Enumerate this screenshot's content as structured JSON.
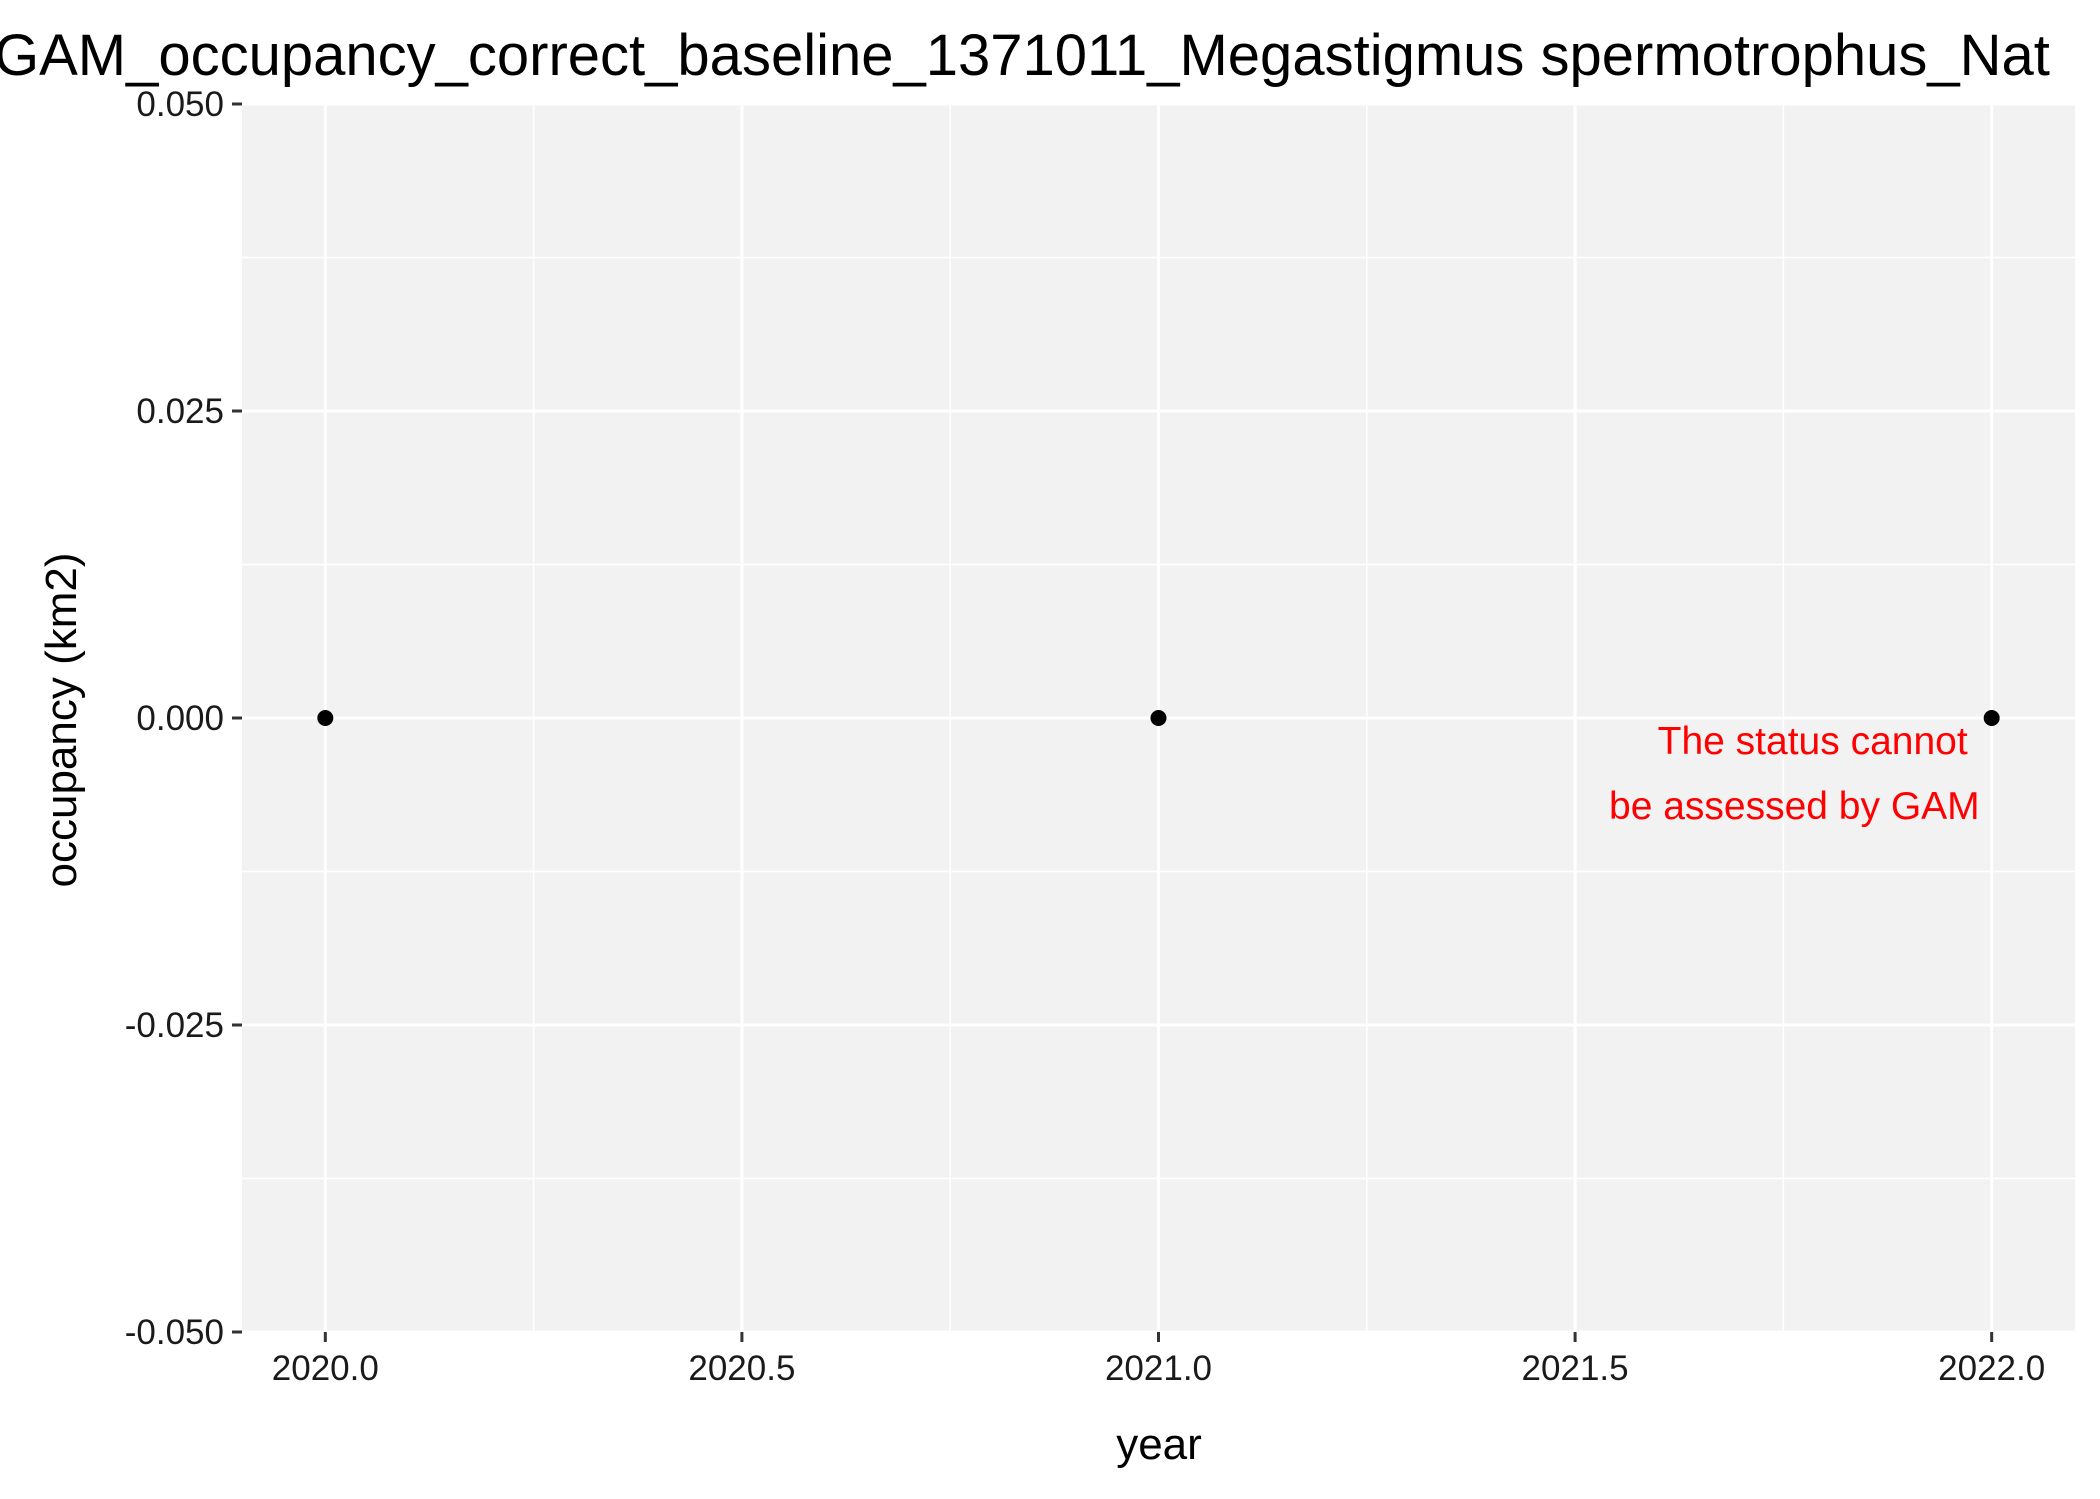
{
  "chart_data": {
    "type": "scatter",
    "title": "GAM_occupancy_correct_baseline_1371011_Megastigmus spermotrophus_Nat",
    "xlabel": "year",
    "ylabel": "occupancy (km2)",
    "xlim": [
      2019.9,
      2022.1
    ],
    "ylim": [
      -0.05,
      0.05
    ],
    "x_ticks": [
      2020.0,
      2020.5,
      2021.0,
      2021.5,
      2022.0
    ],
    "x_tick_labels": [
      "2020.0",
      "2020.5",
      "2021.0",
      "2021.5",
      "2022.0"
    ],
    "y_ticks": [
      -0.05,
      -0.025,
      0.0,
      0.025,
      0.05
    ],
    "y_tick_labels": [
      "-0.050",
      "-0.025",
      "0.000",
      "0.025",
      "0.050"
    ],
    "grid": true,
    "legend": "none",
    "point_color": "#000000",
    "panel_color": "#f2f2f2",
    "grid_color": "#ffffff",
    "points": [
      {
        "x": 2020.0,
        "y": 0.0
      },
      {
        "x": 2021.0,
        "y": 0.0
      },
      {
        "x": 2022.0,
        "y": 0.0
      }
    ],
    "annotation": {
      "lines": [
        "The status cannot",
        "be assessed by GAM"
      ],
      "x": 2022.0,
      "y": 0.0,
      "color": "#ff0000",
      "align": "right"
    }
  }
}
